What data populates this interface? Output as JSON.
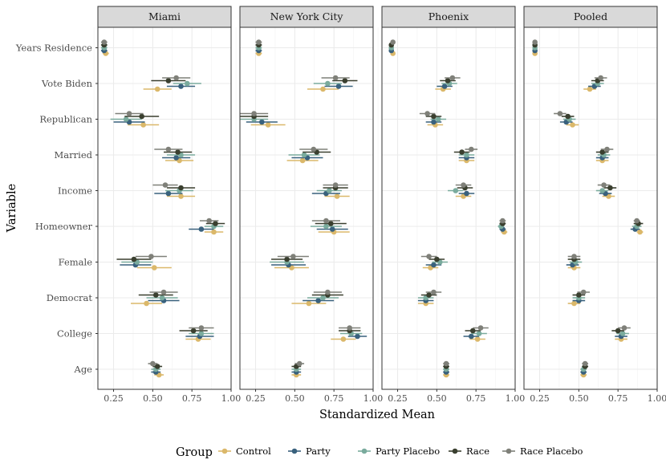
{
  "chart_data": {
    "type": "dot-errorbar",
    "xlabel": "Standardized Mean",
    "ylabel": "Variable",
    "xlim": [
      0.15,
      1.0
    ],
    "xticks": [
      0.25,
      0.5,
      0.75,
      1.0
    ],
    "xtick_labels": [
      "0.25",
      "0.50",
      "0.75",
      "1.00"
    ],
    "variables": [
      "Years Residence",
      "Vote Biden",
      "Republican",
      "Married",
      "Income",
      "Homeowner",
      "Female",
      "Democrat",
      "College",
      "Age"
    ],
    "panels": [
      "Miami",
      "New York City",
      "Phoenix",
      "Pooled"
    ],
    "legend": {
      "title": "Group",
      "position": "bottom",
      "groups": [
        "Control",
        "Party",
        "Party Placebo",
        "Race",
        "Race Placebo"
      ],
      "colors": [
        "#dbb86a",
        "#39617d",
        "#7aab9d",
        "#3a3f2f",
        "#7f8079"
      ]
    },
    "data": {
      "Miami": {
        "Years Residence": [
          [
            0.2,
            0.02
          ],
          [
            0.19,
            0.02
          ],
          [
            0.19,
            0.02
          ],
          [
            0.19,
            0.02
          ],
          [
            0.19,
            0.02
          ]
        ],
        "Vote Biden": [
          [
            0.53,
            0.09
          ],
          [
            0.68,
            0.09
          ],
          [
            0.72,
            0.09
          ],
          [
            0.6,
            0.11
          ],
          [
            0.65,
            0.09
          ]
        ],
        "Republican": [
          [
            0.44,
            0.1
          ],
          [
            0.35,
            0.1
          ],
          [
            0.33,
            0.1
          ],
          [
            0.43,
            0.11
          ],
          [
            0.35,
            0.09
          ]
        ],
        "Married": [
          [
            0.67,
            0.09
          ],
          [
            0.65,
            0.09
          ],
          [
            0.68,
            0.09
          ],
          [
            0.66,
            0.09
          ],
          [
            0.6,
            0.09
          ]
        ],
        "Income": [
          [
            0.68,
            0.09
          ],
          [
            0.6,
            0.09
          ],
          [
            0.67,
            0.09
          ],
          [
            0.68,
            0.09
          ],
          [
            0.58,
            0.08
          ]
        ],
        "Homeowner": [
          [
            0.89,
            0.06
          ],
          [
            0.81,
            0.08
          ],
          [
            0.89,
            0.06
          ],
          [
            0.9,
            0.06
          ],
          [
            0.86,
            0.06
          ]
        ],
        "Female": [
          [
            0.51,
            0.11
          ],
          [
            0.39,
            0.1
          ],
          [
            0.4,
            0.1
          ],
          [
            0.38,
            0.11
          ],
          [
            0.49,
            0.1
          ]
        ],
        "Democrat": [
          [
            0.46,
            0.1
          ],
          [
            0.57,
            0.1
          ],
          [
            0.56,
            0.1
          ],
          [
            0.52,
            0.11
          ],
          [
            0.57,
            0.09
          ]
        ],
        "College": [
          [
            0.79,
            0.08
          ],
          [
            0.8,
            0.09
          ],
          [
            0.81,
            0.08
          ],
          [
            0.76,
            0.09
          ],
          [
            0.81,
            0.08
          ]
        ],
        "Age": [
          [
            0.54,
            0.03
          ],
          [
            0.52,
            0.03
          ],
          [
            0.52,
            0.03
          ],
          [
            0.53,
            0.03
          ],
          [
            0.5,
            0.03
          ]
        ]
      },
      "New York City": {
        "Years Residence": [
          [
            0.27,
            0.02
          ],
          [
            0.27,
            0.02
          ],
          [
            0.27,
            0.02
          ],
          [
            0.27,
            0.02
          ],
          [
            0.27,
            0.02
          ]
        ],
        "Vote Biden": [
          [
            0.68,
            0.1
          ],
          [
            0.78,
            0.09
          ],
          [
            0.71,
            0.09
          ],
          [
            0.82,
            0.08
          ],
          [
            0.76,
            0.09
          ]
        ],
        "Republican": [
          [
            0.33,
            0.11
          ],
          [
            0.29,
            0.1
          ],
          [
            0.24,
            0.09
          ],
          [
            0.24,
            0.09
          ],
          [
            0.24,
            0.09
          ]
        ],
        "Married": [
          [
            0.55,
            0.1
          ],
          [
            0.58,
            0.1
          ],
          [
            0.56,
            0.1
          ],
          [
            0.64,
            0.09
          ],
          [
            0.62,
            0.09
          ]
        ],
        "Income": [
          [
            0.77,
            0.08
          ],
          [
            0.7,
            0.09
          ],
          [
            0.72,
            0.08
          ],
          [
            0.76,
            0.08
          ],
          [
            0.76,
            0.08
          ]
        ],
        "Homeowner": [
          [
            0.75,
            0.1
          ],
          [
            0.74,
            0.1
          ],
          [
            0.7,
            0.1
          ],
          [
            0.73,
            0.1
          ],
          [
            0.7,
            0.09
          ]
        ],
        "Female": [
          [
            0.48,
            0.11
          ],
          [
            0.46,
            0.11
          ],
          [
            0.45,
            0.11
          ],
          [
            0.45,
            0.1
          ],
          [
            0.49,
            0.1
          ]
        ],
        "Democrat": [
          [
            0.59,
            0.11
          ],
          [
            0.65,
            0.1
          ],
          [
            0.68,
            0.1
          ],
          [
            0.71,
            0.1
          ],
          [
            0.71,
            0.09
          ]
        ],
        "College": [
          [
            0.81,
            0.08
          ],
          [
            0.9,
            0.06
          ],
          [
            0.86,
            0.07
          ],
          [
            0.85,
            0.07
          ],
          [
            0.85,
            0.07
          ]
        ],
        "Age": [
          [
            0.51,
            0.03
          ],
          [
            0.51,
            0.03
          ],
          [
            0.51,
            0.03
          ],
          [
            0.51,
            0.03
          ],
          [
            0.53,
            0.03
          ]
        ]
      },
      "Phoenix": {
        "Years Residence": [
          [
            0.22,
            0.01
          ],
          [
            0.21,
            0.01
          ],
          [
            0.21,
            0.01
          ],
          [
            0.21,
            0.01
          ],
          [
            0.22,
            0.01
          ]
        ],
        "Vote Biden": [
          [
            0.54,
            0.05
          ],
          [
            0.55,
            0.05
          ],
          [
            0.58,
            0.05
          ],
          [
            0.57,
            0.05
          ],
          [
            0.6,
            0.05
          ]
        ],
        "Republican": [
          [
            0.49,
            0.05
          ],
          [
            0.48,
            0.05
          ],
          [
            0.51,
            0.05
          ],
          [
            0.48,
            0.05
          ],
          [
            0.44,
            0.05
          ]
        ],
        "Married": [
          [
            0.69,
            0.05
          ],
          [
            0.69,
            0.05
          ],
          [
            0.69,
            0.05
          ],
          [
            0.66,
            0.05
          ],
          [
            0.72,
            0.04
          ]
        ],
        "Income": [
          [
            0.67,
            0.05
          ],
          [
            0.69,
            0.05
          ],
          [
            0.62,
            0.05
          ],
          [
            0.68,
            0.05
          ],
          [
            0.67,
            0.05
          ]
        ],
        "Homeowner": [
          [
            0.93,
            0.02
          ],
          [
            0.92,
            0.02
          ],
          [
            0.91,
            0.02
          ],
          [
            0.92,
            0.02
          ],
          [
            0.92,
            0.02
          ]
        ],
        "Female": [
          [
            0.46,
            0.05
          ],
          [
            0.48,
            0.05
          ],
          [
            0.52,
            0.05
          ],
          [
            0.5,
            0.05
          ],
          [
            0.45,
            0.05
          ]
        ],
        "Democrat": [
          [
            0.43,
            0.05
          ],
          [
            0.43,
            0.05
          ],
          [
            0.43,
            0.05
          ],
          [
            0.45,
            0.05
          ],
          [
            0.48,
            0.05
          ]
        ],
        "College": [
          [
            0.76,
            0.05
          ],
          [
            0.72,
            0.05
          ],
          [
            0.77,
            0.05
          ],
          [
            0.73,
            0.05
          ],
          [
            0.78,
            0.05
          ]
        ],
        "Age": [
          [
            0.56,
            0.02
          ],
          [
            0.56,
            0.02
          ],
          [
            0.56,
            0.02
          ],
          [
            0.56,
            0.02
          ],
          [
            0.56,
            0.02
          ]
        ]
      },
      "Pooled": {
        "Years Residence": [
          [
            0.22,
            0.01
          ],
          [
            0.22,
            0.01
          ],
          [
            0.22,
            0.01
          ],
          [
            0.22,
            0.01
          ],
          [
            0.22,
            0.01
          ]
        ],
        "Vote Biden": [
          [
            0.57,
            0.04
          ],
          [
            0.6,
            0.04
          ],
          [
            0.62,
            0.04
          ],
          [
            0.62,
            0.04
          ],
          [
            0.64,
            0.04
          ]
        ],
        "Republican": [
          [
            0.46,
            0.04
          ],
          [
            0.42,
            0.04
          ],
          [
            0.44,
            0.04
          ],
          [
            0.43,
            0.04
          ],
          [
            0.38,
            0.04
          ]
        ],
        "Married": [
          [
            0.65,
            0.04
          ],
          [
            0.65,
            0.04
          ],
          [
            0.66,
            0.04
          ],
          [
            0.65,
            0.04
          ],
          [
            0.68,
            0.04
          ]
        ],
        "Income": [
          [
            0.69,
            0.04
          ],
          [
            0.67,
            0.04
          ],
          [
            0.65,
            0.04
          ],
          [
            0.7,
            0.04
          ],
          [
            0.66,
            0.04
          ]
        ],
        "Homeowner": [
          [
            0.89,
            0.02
          ],
          [
            0.86,
            0.03
          ],
          [
            0.87,
            0.03
          ],
          [
            0.88,
            0.03
          ],
          [
            0.87,
            0.02
          ]
        ],
        "Female": [
          [
            0.47,
            0.04
          ],
          [
            0.46,
            0.04
          ],
          [
            0.48,
            0.04
          ],
          [
            0.47,
            0.04
          ],
          [
            0.47,
            0.04
          ]
        ],
        "Democrat": [
          [
            0.47,
            0.04
          ],
          [
            0.5,
            0.04
          ],
          [
            0.5,
            0.04
          ],
          [
            0.5,
            0.04
          ],
          [
            0.53,
            0.04
          ]
        ],
        "College": [
          [
            0.77,
            0.04
          ],
          [
            0.77,
            0.04
          ],
          [
            0.78,
            0.04
          ],
          [
            0.75,
            0.04
          ],
          [
            0.79,
            0.04
          ]
        ],
        "Age": [
          [
            0.53,
            0.02
          ],
          [
            0.53,
            0.02
          ],
          [
            0.53,
            0.02
          ],
          [
            0.54,
            0.02
          ],
          [
            0.54,
            0.02
          ]
        ]
      }
    }
  }
}
